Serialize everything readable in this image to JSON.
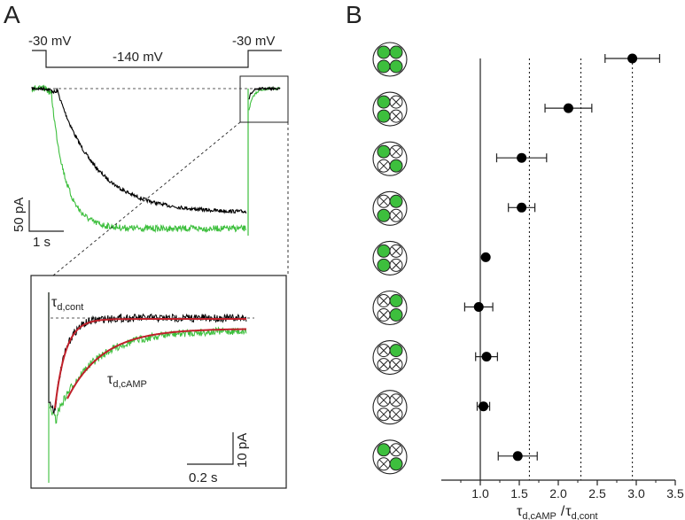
{
  "panels": {
    "a": {
      "letter": "A"
    },
    "b": {
      "letter": "B"
    }
  },
  "protocol": {
    "start_voltage": "-30 mV",
    "step_voltage": "-140 mV",
    "end_voltage": "-30 mV"
  },
  "scale_main": {
    "current": "50 pA",
    "time": "1 s"
  },
  "scale_inset": {
    "current": "10 pA",
    "time": "0.2 s"
  },
  "inset_labels": {
    "control": {
      "main": "τ",
      "sub": "d,cont"
    },
    "camp": {
      "main": "τ",
      "sub": "d,cAMP"
    }
  },
  "colors": {
    "control_trace": "#000000",
    "camp_trace": "#3dbf3d",
    "fit": "#c0202a",
    "subunit_bound": "#3dbf3d"
  },
  "chart_data": {
    "type": "scatter",
    "xlabel": {
      "main1": "τ",
      "sub1": "d,cAMP",
      "sep": "/",
      "main2": "τ",
      "sub2": "d,cont"
    },
    "xlim": [
      0.5,
      3.5
    ],
    "x_ticks": [
      "1.0",
      "1.5",
      "2.0",
      "2.5",
      "3.0",
      "3.5"
    ],
    "reference_line": 1.0,
    "dotted_lines": [
      1.63,
      2.29,
      2.95
    ],
    "rows": [
      {
        "subunits": [
          "cAMP",
          "cAMP",
          "cAMP",
          "cAMP"
        ],
        "value": 2.95,
        "err": 0.35
      },
      {
        "subunits": [
          "cAMP",
          "none",
          "cAMP",
          "none"
        ],
        "value": 2.13,
        "err": 0.3
      },
      {
        "subunits": [
          "cAMP",
          "none",
          "none",
          "cAMP"
        ],
        "value": 1.53,
        "err": 0.32
      },
      {
        "subunits": [
          "none",
          "cAMP",
          "cAMP",
          "none"
        ],
        "value": 1.53,
        "err": 0.17
      },
      {
        "subunits": [
          "cAMP",
          "none",
          "cAMP",
          "none"
        ],
        "value": 1.07,
        "err": 0.0
      },
      {
        "subunits": [
          "none",
          "cAMP",
          "none",
          "cAMP"
        ],
        "value": 0.98,
        "err": 0.18
      },
      {
        "subunits": [
          "none",
          "cAMP",
          "none",
          "none"
        ],
        "value": 1.08,
        "err": 0.14
      },
      {
        "subunits": [
          "none",
          "none",
          "none",
          "none"
        ],
        "value": 1.04,
        "err": 0.08
      },
      {
        "subunits": [
          "cAMP",
          "none",
          "none",
          "cAMP"
        ],
        "value": 1.48,
        "err": 0.25
      }
    ]
  }
}
